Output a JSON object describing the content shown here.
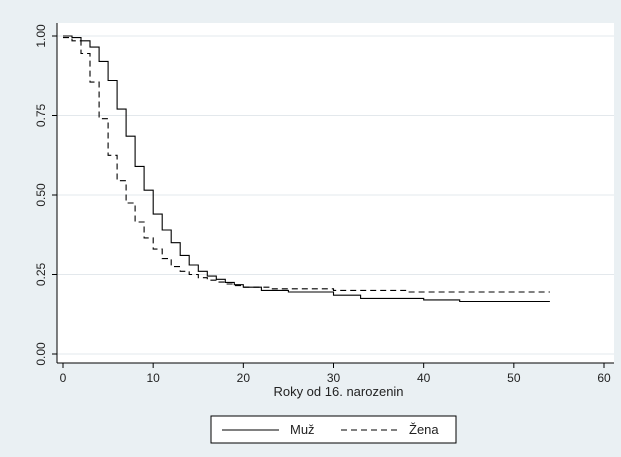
{
  "chart_data": {
    "type": "line",
    "chart_style": "step",
    "title": "",
    "xlabel": "Roky od 16. narozenin",
    "ylabel": "",
    "xlim": [
      0,
      60
    ],
    "ylim": [
      0,
      1
    ],
    "x_ticks": [
      0,
      10,
      20,
      30,
      40,
      50,
      60
    ],
    "x_tick_labels": [
      "0",
      "10",
      "20",
      "30",
      "40",
      "50",
      "60"
    ],
    "y_ticks": [
      0,
      0.25,
      0.5,
      0.75,
      1
    ],
    "y_tick_labels": [
      "0.00",
      "0.25",
      "0.50",
      "0.75",
      "1.00"
    ],
    "grid": "horizontal",
    "legend_position": "bottom",
    "series": [
      {
        "name": "Muž",
        "line_style": "solid",
        "x": [
          0,
          1,
          2,
          3,
          4,
          5,
          6,
          7,
          8,
          9,
          10,
          11,
          12,
          13,
          14,
          15,
          16,
          17,
          18,
          19,
          20,
          22,
          25,
          30,
          33,
          40,
          44,
          54
        ],
        "y": [
          1.0,
          0.995,
          0.985,
          0.965,
          0.92,
          0.86,
          0.77,
          0.685,
          0.59,
          0.515,
          0.44,
          0.39,
          0.35,
          0.31,
          0.28,
          0.26,
          0.245,
          0.235,
          0.225,
          0.218,
          0.21,
          0.2,
          0.195,
          0.185,
          0.175,
          0.17,
          0.165,
          0.165
        ]
      },
      {
        "name": "Žena",
        "line_style": "dashed",
        "x": [
          0,
          1,
          2,
          3,
          4,
          5,
          6,
          7,
          8,
          9,
          10,
          11,
          12,
          13,
          14,
          15,
          16,
          17,
          18,
          19,
          20,
          23,
          30,
          38,
          54
        ],
        "y": [
          0.995,
          0.985,
          0.945,
          0.855,
          0.74,
          0.625,
          0.545,
          0.475,
          0.415,
          0.365,
          0.33,
          0.3,
          0.275,
          0.26,
          0.25,
          0.24,
          0.232,
          0.226,
          0.22,
          0.215,
          0.21,
          0.205,
          0.2,
          0.195,
          0.195
        ]
      }
    ]
  }
}
